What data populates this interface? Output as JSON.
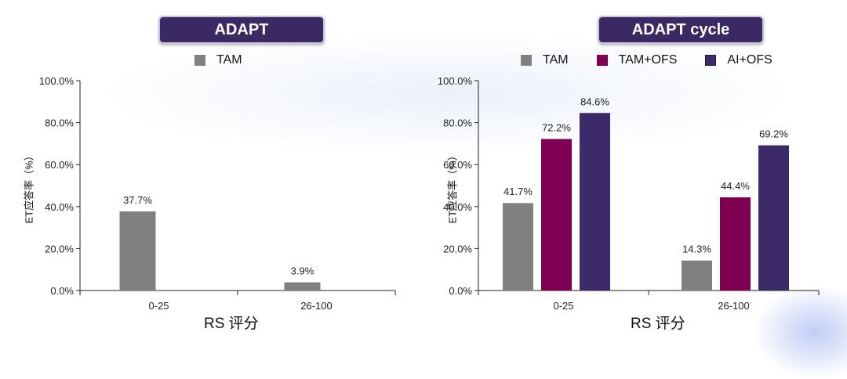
{
  "chart_data": [
    {
      "type": "bar",
      "title": "ADAPT",
      "xlabel": "RS 评分",
      "ylabel": "ET应答率（%）",
      "categories": [
        "0-25",
        "26-100"
      ],
      "ylim": [
        0,
        100
      ],
      "yticks": [
        "0.0%",
        "20.0%",
        "40.0%",
        "60.0%",
        "80.0%",
        "100.0%"
      ],
      "legend_position": "top",
      "series": [
        {
          "name": "TAM",
          "values": [
            37.7,
            3.9
          ],
          "labels": [
            "37.7%",
            "3.9%"
          ],
          "color": "#808080"
        }
      ]
    },
    {
      "type": "bar",
      "title": "ADAPT cycle",
      "xlabel": "RS 评分",
      "ylabel": "ET应答率（%）",
      "categories": [
        "0-25",
        "26-100"
      ],
      "ylim": [
        0,
        100
      ],
      "yticks": [
        "0.0%",
        "20.0%",
        "40.0%",
        "60.0%",
        "80.0%",
        "100.0%"
      ],
      "legend_position": "top",
      "series": [
        {
          "name": "TAM",
          "values": [
            41.7,
            14.3
          ],
          "labels": [
            "41.7%",
            "14.3%"
          ],
          "color": "#808080"
        },
        {
          "name": "TAM+OFS",
          "values": [
            72.2,
            44.4
          ],
          "labels": [
            "72.2%",
            "44.4%"
          ],
          "color": "#7f0052"
        },
        {
          "name": "AI+OFS",
          "values": [
            84.6,
            69.2
          ],
          "labels": [
            "84.6%",
            "69.2%"
          ],
          "color": "#3c2a6a"
        }
      ]
    }
  ]
}
